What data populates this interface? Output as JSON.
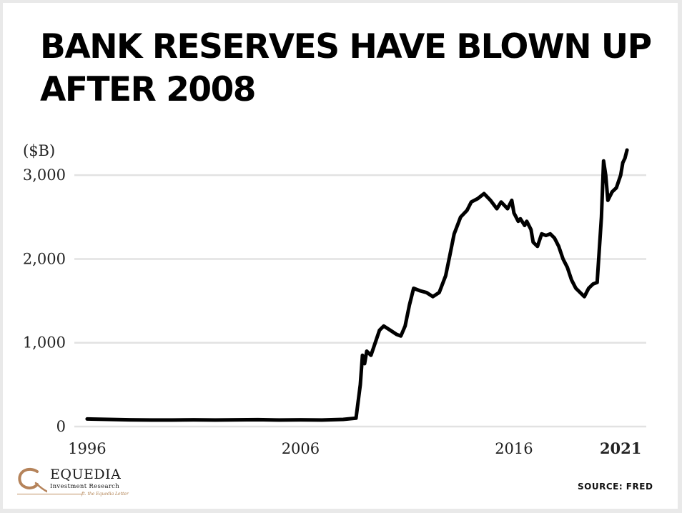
{
  "colors": {
    "line": "#000000",
    "grid": "#e2e2e2",
    "logo_accent": "#b5835a",
    "logo_text": "#1a1a1a"
  },
  "chart_data": {
    "type": "line",
    "title": "BANK RESERVES HAVE BLOWN UP AFTER 2008",
    "unit_label": "($B)",
    "xlabel": "",
    "ylabel": "",
    "ylim": [
      0,
      3300
    ],
    "xlim": [
      1995.4,
      2022.2
    ],
    "y_ticks": [
      0,
      1000,
      2000,
      3000
    ],
    "y_tick_labels": [
      "0",
      "1,000",
      "2,000",
      "3,000"
    ],
    "x_ticks": [
      1996,
      2006,
      2016,
      2021
    ],
    "x_tick_labels": [
      "1996",
      "2006",
      "2016",
      "2021"
    ],
    "grid": "horizontal",
    "legend": "none",
    "series": [
      {
        "x": [
          1996.0,
          1997.0,
          1998.0,
          1999.0,
          2000.0,
          2001.0,
          2002.0,
          2003.0,
          2004.0,
          2005.0,
          2006.0,
          2007.0,
          2008.0,
          2008.6,
          2008.8,
          2008.9,
          2009.0,
          2009.1,
          2009.3,
          2009.5,
          2009.7,
          2009.9,
          2010.2,
          2010.5,
          2010.7,
          2010.9,
          2011.1,
          2011.3,
          2011.6,
          2011.9,
          2012.2,
          2012.5,
          2012.8,
          2013.0,
          2013.2,
          2013.5,
          2013.8,
          2014.0,
          2014.3,
          2014.6,
          2014.9,
          2015.2,
          2015.4,
          2015.7,
          2015.9,
          2016.0,
          2016.2,
          2016.3,
          2016.5,
          2016.6,
          2016.8,
          2016.9,
          2017.1,
          2017.3,
          2017.5,
          2017.7,
          2017.9,
          2018.1,
          2018.3,
          2018.5,
          2018.7,
          2018.9,
          2019.1,
          2019.3,
          2019.5,
          2019.7,
          2019.9,
          2020.1,
          2020.2,
          2020.3,
          2020.4,
          2020.6,
          2020.8,
          2021.0,
          2021.1,
          2021.2,
          2021.3
        ],
        "y": [
          90,
          85,
          80,
          78,
          78,
          80,
          78,
          80,
          82,
          78,
          80,
          78,
          85,
          100,
          500,
          850,
          750,
          900,
          850,
          1000,
          1150,
          1200,
          1150,
          1100,
          1080,
          1200,
          1450,
          1650,
          1620,
          1600,
          1550,
          1600,
          1800,
          2050,
          2300,
          2500,
          2580,
          2680,
          2720,
          2780,
          2700,
          2600,
          2680,
          2600,
          2700,
          2550,
          2450,
          2480,
          2400,
          2450,
          2350,
          2200,
          2150,
          2300,
          2280,
          2300,
          2250,
          2150,
          2000,
          1900,
          1750,
          1650,
          1600,
          1550,
          1650,
          1700,
          1720,
          2500,
          3170,
          3000,
          2700,
          2800,
          2850,
          3000,
          3150,
          3200,
          3300
        ]
      }
    ]
  },
  "logo": {
    "name": "EQUEDIA",
    "subtitle": "Investment Research",
    "tagline": "ft. the Equedia Letter"
  },
  "source": "SOURCE:  FRED"
}
